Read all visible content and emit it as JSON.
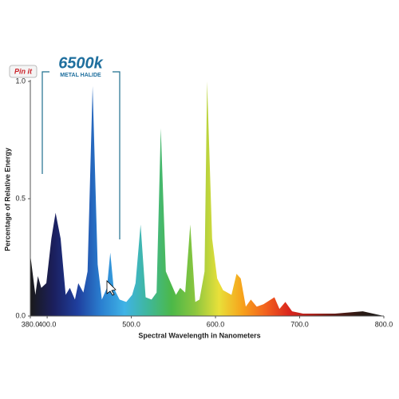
{
  "ui": {
    "pin_button": "Pin it"
  },
  "chart_data": {
    "type": "area",
    "title": "6500k",
    "subtitle": "METAL HALIDE",
    "x_label": "Spectral Wavelength in Nanometers",
    "y_label": "Percentage of Relative Energy",
    "x": [
      380,
      386,
      389,
      393,
      399,
      405,
      410,
      416,
      422,
      427,
      433,
      437,
      443,
      448,
      454,
      460,
      465,
      471,
      475,
      479,
      486,
      494,
      501,
      505,
      511,
      517,
      524,
      530,
      535,
      541,
      547,
      553,
      558,
      564,
      570,
      576,
      581,
      587,
      590,
      596,
      602,
      609,
      619,
      625,
      630,
      636,
      642,
      649,
      657,
      670,
      676,
      683,
      691,
      704,
      742,
      775,
      800
    ],
    "values": [
      0.26,
      0.09,
      0.17,
      0.12,
      0.14,
      0.33,
      0.44,
      0.33,
      0.09,
      0.12,
      0.07,
      0.14,
      0.1,
      0.19,
      0.98,
      0.22,
      0.07,
      0.12,
      0.27,
      0.12,
      0.07,
      0.06,
      0.09,
      0.14,
      0.39,
      0.08,
      0.07,
      0.1,
      0.8,
      0.19,
      0.14,
      0.09,
      0.12,
      0.1,
      0.39,
      0.06,
      0.07,
      0.19,
      1.0,
      0.33,
      0.16,
      0.11,
      0.09,
      0.18,
      0.16,
      0.04,
      0.07,
      0.04,
      0.05,
      0.08,
      0.03,
      0.06,
      0.02,
      0.01,
      0.01,
      0.02,
      0
    ],
    "colors": [
      "#1a1a1a",
      "#1b1f5e",
      "#1f3f9e",
      "#2a7fd0",
      "#3fb3e6",
      "#3fb79a",
      "#4cb848",
      "#8cc63f",
      "#e8e03a",
      "#f7a21b",
      "#f2611e",
      "#d9251d",
      "#a8201a",
      "#5a1a14",
      "#2a1a14",
      "#1a1a1a"
    ],
    "xlim": [
      380,
      800
    ],
    "ylim": [
      0,
      1
    ],
    "xticks": [
      {
        "value": 380,
        "label": "380.0"
      },
      {
        "value": 400,
        "label": "400.0"
      },
      {
        "value": 500,
        "label": "500.0"
      },
      {
        "value": 600,
        "label": "600.0"
      },
      {
        "value": 700,
        "label": "700.0"
      },
      {
        "value": 800,
        "label": "800.0"
      }
    ],
    "yticks": [
      {
        "value": 0,
        "label": "0.0"
      },
      {
        "value": 0.5,
        "label": "0.5"
      },
      {
        "value": 1,
        "label": "1.0"
      }
    ]
  }
}
